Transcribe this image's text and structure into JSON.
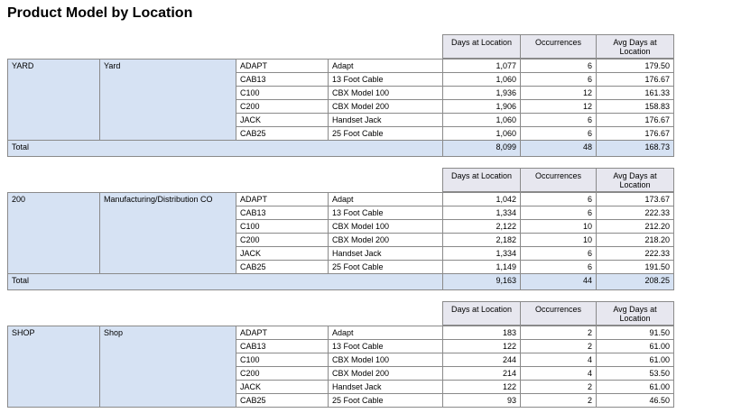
{
  "title": "Product Model by Location",
  "groups": [
    {
      "headers": [
        "Days at Location",
        "Occurrences",
        "Avg Days at Location"
      ],
      "location_code": "YARD",
      "location_name": "Yard",
      "rows": [
        [
          "ADAPT",
          "Adapt",
          "1,077",
          "6",
          "179.50"
        ],
        [
          "CAB13",
          "13 Foot Cable",
          "1,060",
          "6",
          "176.67"
        ],
        [
          "C100",
          "CBX Model 100",
          "1,936",
          "12",
          "161.33"
        ],
        [
          "C200",
          "CBX Model 200",
          "1,906",
          "12",
          "158.83"
        ],
        [
          "JACK",
          "Handset Jack",
          "1,060",
          "6",
          "176.67"
        ],
        [
          "CAB25",
          "25 Foot Cable",
          "1,060",
          "6",
          "176.67"
        ]
      ],
      "total": {
        "label": "Total",
        "values": [
          "8,099",
          "48",
          "168.73"
        ]
      }
    },
    {
      "headers": [
        "Days at Location",
        "Occurrences",
        "Avg Days at Location"
      ],
      "location_code": "200",
      "location_name": "Manufacturing/Distribution CO",
      "rows": [
        [
          "ADAPT",
          "Adapt",
          "1,042",
          "6",
          "173.67"
        ],
        [
          "CAB13",
          "13 Foot Cable",
          "1,334",
          "6",
          "222.33"
        ],
        [
          "C100",
          "CBX Model 100",
          "2,122",
          "10",
          "212.20"
        ],
        [
          "C200",
          "CBX Model 200",
          "2,182",
          "10",
          "218.20"
        ],
        [
          "JACK",
          "Handset Jack",
          "1,334",
          "6",
          "222.33"
        ],
        [
          "CAB25",
          "25 Foot Cable",
          "1,149",
          "6",
          "191.50"
        ]
      ],
      "total": {
        "label": "Total",
        "values": [
          "9,163",
          "44",
          "208.25"
        ]
      }
    },
    {
      "headers": [
        "Days at Location",
        "Occurrences",
        "Avg Days at Location"
      ],
      "location_code": "SHOP",
      "location_name": "Shop",
      "rows": [
        [
          "ADAPT",
          "Adapt",
          "183",
          "2",
          "91.50"
        ],
        [
          "CAB13",
          "13 Foot Cable",
          "122",
          "2",
          "61.00"
        ],
        [
          "C100",
          "CBX Model 100",
          "244",
          "4",
          "61.00"
        ],
        [
          "C200",
          "CBX Model 200",
          "214",
          "4",
          "53.50"
        ],
        [
          "JACK",
          "Handset Jack",
          "122",
          "2",
          "61.00"
        ],
        [
          "CAB25",
          "25 Foot Cable",
          "93",
          "2",
          "46.50"
        ]
      ]
    }
  ]
}
